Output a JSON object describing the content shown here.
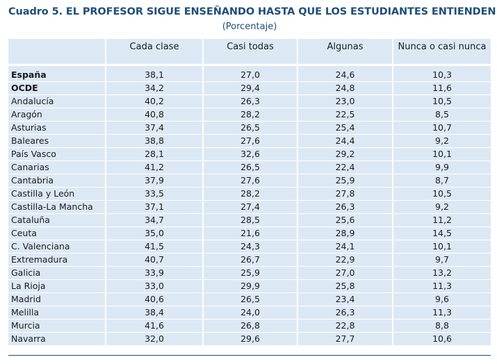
{
  "title": "Cuadro 5. EL PROFESOR SIGUE ENSEÑANDO HASTA QUE LOS ESTUDIANTES ENTIENDEN",
  "subtitle": "(Porcentaje)",
  "table": {
    "headers": [
      "",
      "Cada clase",
      "Casi todas",
      "Algunas",
      "Nunca o casi nunca"
    ],
    "rows": [
      {
        "region": "España",
        "values": [
          "38,1",
          "27,0",
          "24,6",
          "10,3"
        ]
      },
      {
        "region": "OCDE",
        "values": [
          "34,2",
          "29,4",
          "24,8",
          "11,6"
        ]
      },
      {
        "region": "Andalucía",
        "values": [
          "40,2",
          "26,3",
          "23,0",
          "10,5"
        ]
      },
      {
        "region": "Aragón",
        "values": [
          "40,8",
          "28,2",
          "22,5",
          "8,5"
        ]
      },
      {
        "region": "Asturias",
        "values": [
          "37,4",
          "26,5",
          "25,4",
          "10,7"
        ]
      },
      {
        "region": "Baleares",
        "values": [
          "38,8",
          "27,6",
          "24,4",
          "9,2"
        ]
      },
      {
        "region": "País Vasco",
        "values": [
          "28,1",
          "32,6",
          "29,2",
          "10,1"
        ]
      },
      {
        "region": "Canarias",
        "values": [
          "41,2",
          "26,5",
          "22,4",
          "9,9"
        ]
      },
      {
        "region": "Cantabria",
        "values": [
          "37,9",
          "27,6",
          "25,9",
          "8,7"
        ]
      },
      {
        "region": "Castilla y León",
        "values": [
          "33,5",
          "28,2",
          "27,8",
          "10,5"
        ]
      },
      {
        "region": "Castilla-La Mancha",
        "values": [
          "37,1",
          "27,4",
          "26,3",
          "9,2"
        ]
      },
      {
        "region": "Cataluña",
        "values": [
          "34,7",
          "28,5",
          "25,6",
          "11,2"
        ]
      },
      {
        "region": "Ceuta",
        "values": [
          "35,0",
          "21,6",
          "28,9",
          "14,5"
        ]
      },
      {
        "region": "C. Valenciana",
        "values": [
          "41,5",
          "24,3",
          "24,1",
          "10,1"
        ]
      },
      {
        "region": "Extremadura",
        "values": [
          "40,7",
          "26,7",
          "22,9",
          "9,7"
        ]
      },
      {
        "region": "Galicia",
        "values": [
          "33,9",
          "25,9",
          "27,0",
          "13,2"
        ]
      },
      {
        "region": "La Rioja",
        "values": [
          "33,0",
          "29,9",
          "25,8",
          "11,3"
        ]
      },
      {
        "region": "Madrid",
        "values": [
          "40,6",
          "26,5",
          "23,4",
          "9,6"
        ]
      },
      {
        "region": "Melilla",
        "values": [
          "38,4",
          "24,0",
          "26,3",
          "11,3"
        ]
      },
      {
        "region": "Murcia",
        "values": [
          "41,6",
          "26,8",
          "22,8",
          "8,8"
        ]
      },
      {
        "region": "Navarra",
        "values": [
          "32,0",
          "29,6",
          "27,7",
          "10,6"
        ]
      }
    ]
  },
  "colors": {
    "title": "#1f4e79",
    "cell_background": "#dce9f5",
    "rule": "#1f4e79"
  }
}
